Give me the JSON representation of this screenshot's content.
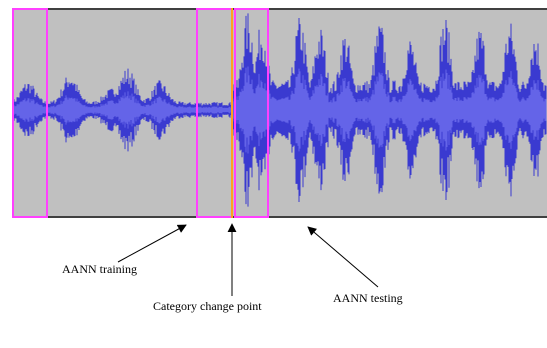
{
  "labels": {
    "training": "AANN training",
    "change_point": "Category change point",
    "testing": "AANN testing"
  }
}
